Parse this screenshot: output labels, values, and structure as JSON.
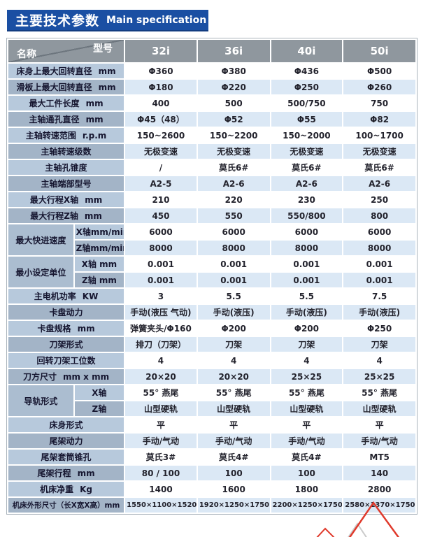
{
  "page": {
    "title_zh": "主要技术参数",
    "title_en": "Main specification"
  },
  "colors": {
    "title_bar": "#1a4fa3",
    "header_gray": "#8f979e",
    "label_light": "#b7c9dc",
    "label_dark": "#a3b4c7",
    "row_blue": "#dbe8f5",
    "decor_red": "#e03a2c",
    "decor_gray": "#cbcbcb"
  },
  "table": {
    "corner": {
      "top_right": "型号",
      "bottom_left": "名称"
    },
    "models": [
      "32i",
      "36i",
      "40i",
      "50i"
    ],
    "rows": [
      {
        "label": "床身上最大回转直径",
        "unit": "mm",
        "values": [
          "Φ360",
          "Φ380",
          "Φ436",
          "Φ500"
        ]
      },
      {
        "label": "滑板上最大回转直径",
        "unit": "mm",
        "values": [
          "Φ180",
          "Φ220",
          "Φ250",
          "Φ260"
        ]
      },
      {
        "label": "最大工件长度",
        "unit": "mm",
        "values": [
          "400",
          "500",
          "500/750",
          "750"
        ]
      },
      {
        "label": "主轴通孔直径",
        "unit": "mm",
        "values": [
          "Φ45（48）",
          "Φ52",
          "Φ55",
          "Φ82"
        ]
      },
      {
        "label": "主轴转速范围",
        "unit": "r.p.m",
        "values": [
          "150~2600",
          "150~2200",
          "150~2000",
          "100~1700"
        ]
      },
      {
        "label": "主轴转速级数",
        "unit": "",
        "values": [
          "无极变速",
          "无极变速",
          "无极变速",
          "无极变速"
        ]
      },
      {
        "label": "主轴孔锥度",
        "unit": "",
        "values": [
          "/",
          "莫氏6#",
          "莫氏6#",
          "莫氏6#"
        ]
      },
      {
        "label": "主轴端部型号",
        "unit": "",
        "values": [
          "A2-5",
          "A2-6",
          "A2-6",
          "A2-6"
        ]
      },
      {
        "label": "最大行程X轴",
        "unit": "mm",
        "values": [
          "210",
          "220",
          "230",
          "250"
        ]
      },
      {
        "label": "最大行程Z轴",
        "unit": "mm",
        "values": [
          "450",
          "550",
          "550/800",
          "800"
        ]
      },
      {
        "group": "最大快进速度",
        "span": 2,
        "sub": "X轴mm/min",
        "values": [
          "6000",
          "6000",
          "6000",
          "6000"
        ]
      },
      {
        "sub": "Z轴mm/min",
        "values": [
          "8000",
          "8000",
          "8000",
          "8000"
        ]
      },
      {
        "group": "最小设定单位",
        "span": 2,
        "sub": "X轴 mm",
        "values": [
          "0.001",
          "0.001",
          "0.001",
          "0.001"
        ]
      },
      {
        "sub": "Z轴 mm",
        "values": [
          "0.001",
          "0.001",
          "0.001",
          "0.001"
        ]
      },
      {
        "label": "主电机功率",
        "unit": "KW",
        "values": [
          "3",
          "5.5",
          "5.5",
          "7.5"
        ]
      },
      {
        "label": "卡盘动力",
        "unit": "",
        "values": [
          "手动(液压 气动)",
          "手动(液压)",
          "手动(液压)",
          "手动(液压)"
        ]
      },
      {
        "label": "卡盘规格",
        "unit": "mm",
        "values": [
          "弹簧夹头/Φ160",
          "Φ200",
          "Φ200",
          "Φ250"
        ]
      },
      {
        "label": "刀架形式",
        "unit": "",
        "values": [
          "排刀（刀架）",
          "刀架",
          "刀架",
          "刀架"
        ]
      },
      {
        "label": "回转刀架工位数",
        "unit": "",
        "values": [
          "4",
          "4",
          "4",
          "4"
        ]
      },
      {
        "label": "刀方尺寸",
        "unit": "mm x mm",
        "values": [
          "20×20",
          "20×20",
          "25×25",
          "25×25"
        ]
      },
      {
        "group": "导轨形式",
        "span": 2,
        "sub": "X轴",
        "values": [
          "55° 燕尾",
          "55° 燕尾",
          "55° 燕尾",
          "55° 燕尾"
        ]
      },
      {
        "sub": "Z轴",
        "values": [
          "山型硬轨",
          "山型硬轨",
          "山型硬轨",
          "山型硬轨"
        ]
      },
      {
        "label": "床身形式",
        "unit": "",
        "values": [
          "平",
          "平",
          "平",
          "平"
        ]
      },
      {
        "label": "尾架动力",
        "unit": "",
        "values": [
          "手动/气动",
          "手动/气动",
          "手动/气动",
          "手动/气动"
        ]
      },
      {
        "label": "尾架套筒锥孔",
        "unit": "",
        "values": [
          "莫氏3#",
          "莫氏4#",
          "莫氏4#",
          "MT5"
        ]
      },
      {
        "label": "尾架行程",
        "unit": "mm",
        "values": [
          "80 / 100",
          "100",
          "100",
          "140"
        ]
      },
      {
        "label": "机床净重",
        "unit": "Kg",
        "values": [
          "1400",
          "1600",
          "1800",
          "2800"
        ]
      },
      {
        "label": "机床外形尺寸（长X宽X高）mm",
        "unit": "",
        "values": [
          "1550×1100×1520",
          "1920×1250×1750",
          "2200×1250×1750",
          "2580×1370×1750"
        ]
      }
    ]
  }
}
